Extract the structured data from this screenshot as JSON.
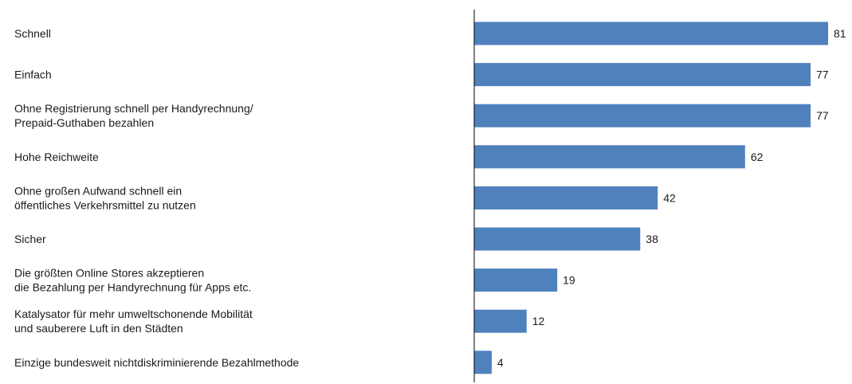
{
  "chart_data": {
    "type": "bar",
    "orientation": "horizontal",
    "categories": [
      [
        "Schnell"
      ],
      [
        "Einfach"
      ],
      [
        "Ohne Registrierung schnell per Handyrechnung/",
        "Prepaid-Guthaben  bezahlen"
      ],
      [
        "Hohe Reichweite"
      ],
      [
        "Ohne großen Aufwand  schnell ein",
        "öffentliches Verkehrsmittel zu nutzen"
      ],
      [
        "Sicher"
      ],
      [
        "Die größten Online Stores akzeptieren",
        "die Bezahlung per Handyrechnung  für Apps etc."
      ],
      [
        "Katalysator für mehr umweltschonende  Mobilität",
        "und sauberere Luft in den Städten"
      ],
      [
        "Einzige bundesweit nichtdiskriminierende  Bezahlmethode"
      ]
    ],
    "values": [
      81,
      77,
      77,
      62,
      42,
      38,
      19,
      12,
      4
    ],
    "xlim": [
      0,
      81
    ],
    "bar_color": "#4f81bd",
    "grid": false,
    "legend": "none"
  }
}
